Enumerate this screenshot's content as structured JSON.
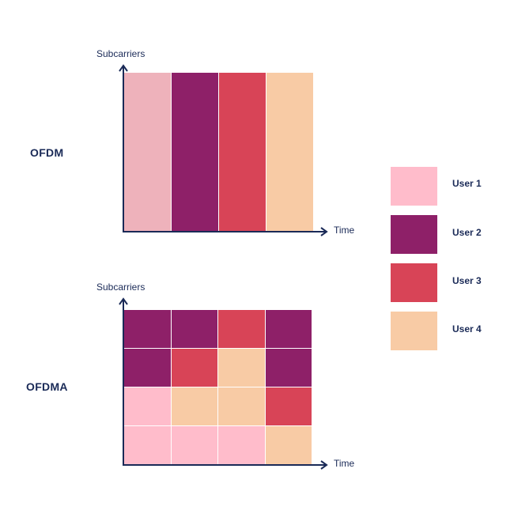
{
  "colors": {
    "user1": "#ffbccb",
    "user1_ofdm": "#eeb2bb",
    "user2": "#8e2068",
    "user3": "#d84457",
    "user4": "#f8cba5",
    "axis": "#1a2a57"
  },
  "ofdm": {
    "title": "OFDM",
    "y_axis_label": "Subcarriers",
    "x_axis_label": "Time",
    "columns": [
      "user1_ofdm",
      "user2",
      "user3",
      "user4"
    ]
  },
  "ofdma": {
    "title": "OFDMA",
    "y_axis_label": "Subcarriers",
    "x_axis_label": "Time",
    "grid": [
      [
        "user2",
        "user2",
        "user3",
        "user2"
      ],
      [
        "user2",
        "user3",
        "user4",
        "user2"
      ],
      [
        "user1",
        "user4",
        "user4",
        "user3"
      ],
      [
        "user1",
        "user1",
        "user1",
        "user4"
      ]
    ]
  },
  "legend": [
    {
      "key": "user1",
      "label": "User 1"
    },
    {
      "key": "user2",
      "label": "User 2"
    },
    {
      "key": "user3",
      "label": "User 3"
    },
    {
      "key": "user4",
      "label": "User 4"
    }
  ]
}
